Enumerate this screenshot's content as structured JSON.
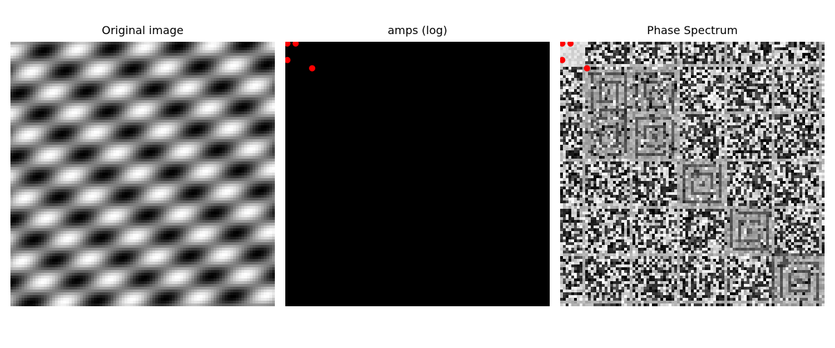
{
  "chart_data": [
    {
      "type": "heatmap",
      "title": "Original image",
      "colormap": "gray",
      "axes": "off",
      "pattern": "sum of two sinusoidal gratings (diagonal checker-like interference)",
      "markers": []
    },
    {
      "type": "heatmap",
      "title": "amps (log)",
      "colormap": "gray",
      "axes": "off",
      "background": "black",
      "marker_color": "#ff0000",
      "markers": [
        {
          "x": 0,
          "y": 0
        },
        {
          "x": 1,
          "y": 0
        },
        {
          "x": 0,
          "y": 2
        },
        {
          "x": 3,
          "y": 3
        }
      ]
    },
    {
      "type": "heatmap",
      "title": "Phase Spectrum",
      "colormap": "gray",
      "axes": "off",
      "marker_color": "#ff0000",
      "markers": [
        {
          "x": 0,
          "y": 0
        },
        {
          "x": 1,
          "y": 0
        },
        {
          "x": 0,
          "y": 2
        },
        {
          "x": 3,
          "y": 3
        }
      ]
    }
  ]
}
